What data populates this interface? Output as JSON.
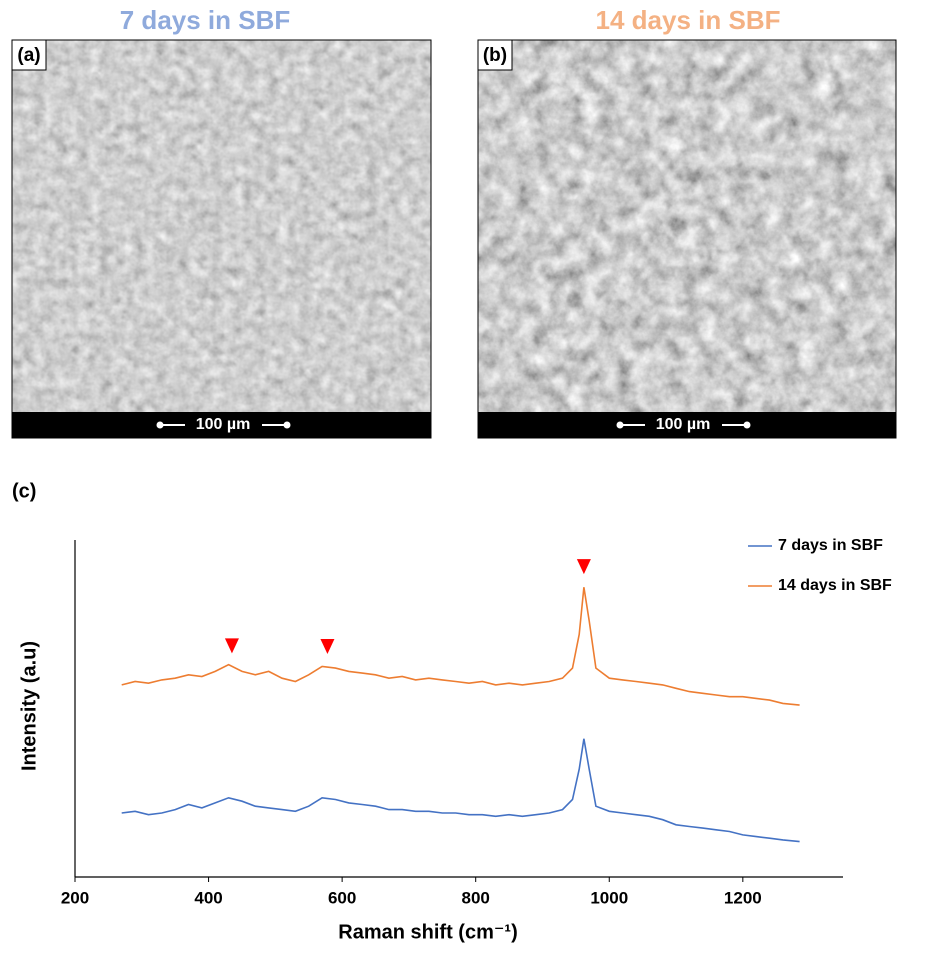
{
  "figure": {
    "panels": [
      {
        "title": "7 days in SBF",
        "label": "(a)",
        "scale_bar": "100 µm"
      },
      {
        "title": "14 days in SBF",
        "label": "(b)",
        "scale_bar": "100 µm"
      }
    ]
  },
  "chart_data": {
    "type": "line",
    "label": "(c)",
    "xlabel": "Raman shift (cm⁻¹)",
    "ylabel": "Intensity (a.u)",
    "x": [
      270,
      290,
      310,
      330,
      350,
      370,
      390,
      410,
      430,
      450,
      470,
      490,
      510,
      530,
      550,
      570,
      590,
      610,
      630,
      650,
      670,
      690,
      710,
      730,
      750,
      770,
      790,
      810,
      830,
      850,
      870,
      890,
      910,
      930,
      945,
      955,
      962,
      970,
      980,
      1000,
      1020,
      1040,
      1060,
      1080,
      1100,
      1120,
      1140,
      1160,
      1180,
      1200,
      1220,
      1240,
      1260,
      1285
    ],
    "series": [
      {
        "name": "7 days in SBF",
        "color": "#4472c4",
        "values": [
          19,
          19.5,
          18.5,
          19,
          20,
          21.5,
          20.5,
          22,
          23.5,
          22.5,
          21,
          20.5,
          20,
          19.5,
          21,
          23.5,
          23,
          22,
          21.5,
          21,
          20,
          20,
          19.5,
          19.5,
          19,
          19,
          18.5,
          18.5,
          18,
          18.5,
          18,
          18.5,
          19,
          20,
          23,
          32,
          41,
          32,
          21,
          19.5,
          19,
          18.5,
          18,
          17,
          15.5,
          15,
          14.5,
          14,
          13.5,
          12.5,
          12,
          11.5,
          11,
          10.5
        ]
      },
      {
        "name": "14 days in SBF",
        "color": "#ed7d31",
        "values": [
          57,
          58,
          57.5,
          58.5,
          59,
          60,
          59.5,
          61,
          63,
          61,
          60,
          61,
          59,
          58,
          60,
          62.5,
          62,
          61,
          60.5,
          60,
          59,
          59.5,
          58.5,
          59,
          58.5,
          58,
          57.5,
          58,
          57,
          57.5,
          57,
          57.5,
          58,
          59,
          62,
          72,
          86,
          76,
          62,
          59,
          58.5,
          58,
          57.5,
          57,
          56,
          55,
          54.5,
          54,
          53.5,
          53.5,
          53,
          52.5,
          51.5,
          51
        ]
      }
    ],
    "peak_markers": [
      435,
      578,
      962
    ],
    "peak_marker_color": "#ff0000",
    "xlim": [
      200,
      1350
    ],
    "xticks": [
      200,
      400,
      600,
      800,
      1000,
      1200
    ],
    "ylim": [
      0,
      100
    ]
  }
}
